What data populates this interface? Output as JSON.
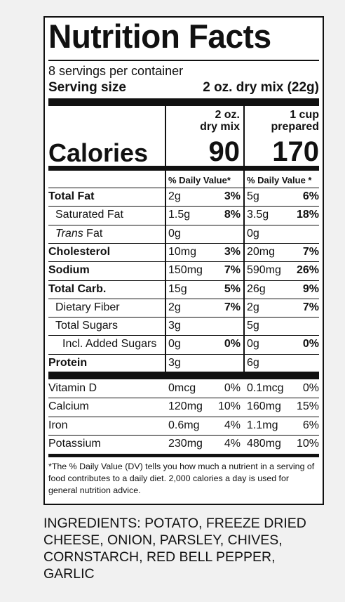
{
  "title": "Nutrition Facts",
  "servings": "8 servings per container",
  "serving_size_label": "Serving size",
  "serving_size_value": "2 oz. dry mix (22g)",
  "columns": [
    {
      "header_line1": "2 oz.",
      "header_line2": "dry mix",
      "calories": "90",
      "dv_header": "% Daily Value*"
    },
    {
      "header_line1": "1 cup",
      "header_line2": "prepared",
      "calories": "170",
      "dv_header": "% Daily Value *"
    }
  ],
  "calories_label": "Calories",
  "nutrients": [
    {
      "name": "Total Fat",
      "bold": true,
      "indent": 0,
      "c1_amt": "2g",
      "c1_pct": "3%",
      "c2_amt": "5g",
      "c2_pct": "6%"
    },
    {
      "name": "Saturated Fat",
      "bold": false,
      "indent": 1,
      "c1_amt": "1.5g",
      "c1_pct": "8%",
      "c2_amt": "3.5g",
      "c2_pct": "18%"
    },
    {
      "name": "Trans Fat",
      "bold": false,
      "indent": 1,
      "c1_amt": "0g",
      "c1_pct": "",
      "c2_amt": "0g",
      "c2_pct": ""
    },
    {
      "name": "Cholesterol",
      "bold": true,
      "indent": 0,
      "c1_amt": "10mg",
      "c1_pct": "3%",
      "c2_amt": "20mg",
      "c2_pct": "7%"
    },
    {
      "name": "Sodium",
      "bold": true,
      "indent": 0,
      "c1_amt": "150mg",
      "c1_pct": "7%",
      "c2_amt": "590mg",
      "c2_pct": "26%"
    },
    {
      "name": "Total Carb.",
      "bold": true,
      "indent": 0,
      "c1_amt": "15g",
      "c1_pct": "5%",
      "c2_amt": "26g",
      "c2_pct": "9%"
    },
    {
      "name": "Dietary Fiber",
      "bold": false,
      "indent": 1,
      "c1_amt": "2g",
      "c1_pct": "7%",
      "c2_amt": "2g",
      "c2_pct": "7%"
    },
    {
      "name": "Total Sugars",
      "bold": false,
      "indent": 1,
      "c1_amt": "3g",
      "c1_pct": "",
      "c2_amt": "5g",
      "c2_pct": ""
    },
    {
      "name": "Incl. Added Sugars",
      "bold": false,
      "indent": 2,
      "c1_amt": "0g",
      "c1_pct": "0%",
      "c2_amt": "0g",
      "c2_pct": "0%"
    },
    {
      "name": "Protein",
      "bold": true,
      "indent": 0,
      "c1_amt": "3g",
      "c1_pct": "",
      "c2_amt": "6g",
      "c2_pct": ""
    }
  ],
  "vitamins": [
    {
      "name": "Vitamin D",
      "c1_amt": "0mcg",
      "c1_pct": "0%",
      "c2_amt": "0.1mcg",
      "c2_pct": "0%"
    },
    {
      "name": "Calcium",
      "c1_amt": "120mg",
      "c1_pct": "10%",
      "c2_amt": "160mg",
      "c2_pct": "15%"
    },
    {
      "name": "Iron",
      "c1_amt": "0.6mg",
      "c1_pct": "4%",
      "c2_amt": "1.1mg",
      "c2_pct": "6%"
    },
    {
      "name": "Potassium",
      "c1_amt": "230mg",
      "c1_pct": "4%",
      "c2_amt": "480mg",
      "c2_pct": "10%"
    }
  ],
  "footnote": "*The % Daily Value (DV) tells you how much a nutrient in a serving of food contributes to a daily diet. 2,000 calories a day is used for general nutrition advice.",
  "ingredients": "INGREDIENTS: POTATO, FREEZE DRIED CHEESE, ONION, PARSLEY, CHIVES, CORNSTARCH, RED BELL PEPPER, GARLIC"
}
